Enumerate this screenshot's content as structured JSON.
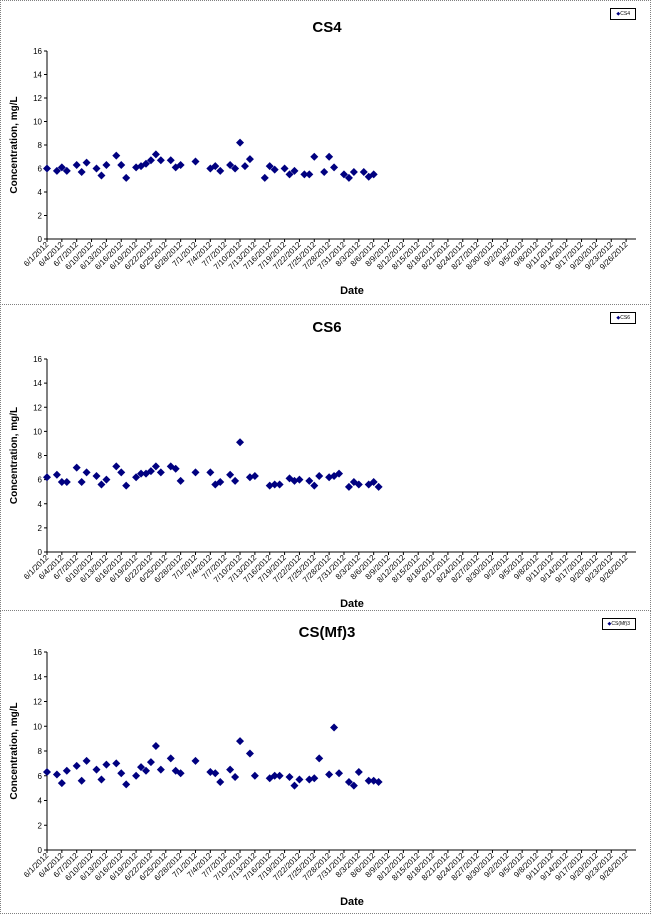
{
  "chart_data": [
    {
      "type": "scatter",
      "title": "CS4",
      "xlabel": "Date",
      "ylabel": "Concentration, mg/L",
      "ylim": [
        0,
        16
      ],
      "yticks": [
        0,
        2,
        4,
        6,
        8,
        10,
        12,
        14,
        16
      ],
      "xlim": [
        "2012-06-01",
        "2012-09-28"
      ],
      "xticks": [
        "6/1/2012",
        "6/4/2012",
        "6/7/2012",
        "6/10/2012",
        "6/13/2012",
        "6/16/2012",
        "6/19/2012",
        "6/22/2012",
        "6/25/2012",
        "6/28/2012",
        "7/1/2012",
        "7/4/2012",
        "7/7/2012",
        "7/10/2012",
        "7/13/2012",
        "7/16/2012",
        "7/19/2012",
        "7/22/2012",
        "7/25/2012",
        "7/28/2012",
        "7/31/2012",
        "8/3/2012",
        "8/6/2012",
        "8/9/2012",
        "8/12/2012",
        "8/15/2012",
        "8/18/2012",
        "8/21/2012",
        "8/24/2012",
        "8/27/2012",
        "8/30/2012",
        "9/2/2012",
        "9/5/2012",
        "9/8/2012",
        "9/11/2012",
        "9/14/2012",
        "9/17/2012",
        "9/20/2012",
        "9/23/2012",
        "9/26/2012"
      ],
      "grid": false,
      "legend_position": "top-right",
      "legend": [
        "CS4"
      ],
      "marker_color": "#000080",
      "points": [
        {
          "x": "2012-06-01",
          "y": 6.0
        },
        {
          "x": "2012-06-03",
          "y": 5.8
        },
        {
          "x": "2012-06-04",
          "y": 6.1
        },
        {
          "x": "2012-06-05",
          "y": 5.8
        },
        {
          "x": "2012-06-07",
          "y": 6.3
        },
        {
          "x": "2012-06-08",
          "y": 5.7
        },
        {
          "x": "2012-06-09",
          "y": 6.5
        },
        {
          "x": "2012-06-11",
          "y": 6.0
        },
        {
          "x": "2012-06-12",
          "y": 5.4
        },
        {
          "x": "2012-06-13",
          "y": 6.3
        },
        {
          "x": "2012-06-15",
          "y": 7.1
        },
        {
          "x": "2012-06-16",
          "y": 6.3
        },
        {
          "x": "2012-06-17",
          "y": 5.2
        },
        {
          "x": "2012-06-19",
          "y": 6.1
        },
        {
          "x": "2012-06-20",
          "y": 6.2
        },
        {
          "x": "2012-06-21",
          "y": 6.4
        },
        {
          "x": "2012-06-22",
          "y": 6.7
        },
        {
          "x": "2012-06-23",
          "y": 7.2
        },
        {
          "x": "2012-06-24",
          "y": 6.7
        },
        {
          "x": "2012-06-26",
          "y": 6.7
        },
        {
          "x": "2012-06-27",
          "y": 6.1
        },
        {
          "x": "2012-06-28",
          "y": 6.3
        },
        {
          "x": "2012-07-01",
          "y": 6.6
        },
        {
          "x": "2012-07-04",
          "y": 6.0
        },
        {
          "x": "2012-07-05",
          "y": 6.2
        },
        {
          "x": "2012-07-06",
          "y": 5.8
        },
        {
          "x": "2012-07-08",
          "y": 6.3
        },
        {
          "x": "2012-07-09",
          "y": 6.0
        },
        {
          "x": "2012-07-10",
          "y": 8.2
        },
        {
          "x": "2012-07-11",
          "y": 6.2
        },
        {
          "x": "2012-07-12",
          "y": 6.8
        },
        {
          "x": "2012-07-15",
          "y": 5.2
        },
        {
          "x": "2012-07-16",
          "y": 6.2
        },
        {
          "x": "2012-07-17",
          "y": 5.9
        },
        {
          "x": "2012-07-19",
          "y": 6.0
        },
        {
          "x": "2012-07-20",
          "y": 5.5
        },
        {
          "x": "2012-07-21",
          "y": 5.8
        },
        {
          "x": "2012-07-23",
          "y": 5.5
        },
        {
          "x": "2012-07-24",
          "y": 5.5
        },
        {
          "x": "2012-07-25",
          "y": 7.0
        },
        {
          "x": "2012-07-27",
          "y": 5.7
        },
        {
          "x": "2012-07-28",
          "y": 7.0
        },
        {
          "x": "2012-07-29",
          "y": 6.1
        },
        {
          "x": "2012-07-31",
          "y": 5.5
        },
        {
          "x": "2012-08-01",
          "y": 5.2
        },
        {
          "x": "2012-08-02",
          "y": 5.7
        },
        {
          "x": "2012-08-04",
          "y": 5.7
        },
        {
          "x": "2012-08-05",
          "y": 5.3
        },
        {
          "x": "2012-08-06",
          "y": 5.5
        }
      ]
    },
    {
      "type": "scatter",
      "title": "CS6",
      "xlabel": "Date",
      "ylabel": "Concentration, mg/L",
      "ylim": [
        0,
        16
      ],
      "yticks": [
        0,
        2,
        4,
        6,
        8,
        10,
        12,
        14,
        16
      ],
      "xlim": [
        "2012-06-01",
        "2012-09-28"
      ],
      "xticks": [
        "6/1/2012",
        "6/4/2012",
        "6/7/2012",
        "6/10/2012",
        "6/13/2012",
        "6/16/2012",
        "6/19/2012",
        "6/22/2012",
        "6/25/2012",
        "6/28/2012",
        "7/1/2012",
        "7/4/2012",
        "7/7/2012",
        "7/10/2012",
        "7/13/2012",
        "7/16/2012",
        "7/19/2012",
        "7/22/2012",
        "7/25/2012",
        "7/28/2012",
        "7/31/2012",
        "8/3/2012",
        "8/6/2012",
        "8/9/2012",
        "8/12/2012",
        "8/15/2012",
        "8/18/2012",
        "8/21/2012",
        "8/24/2012",
        "8/27/2012",
        "8/30/2012",
        "9/2/2012",
        "9/5/2012",
        "9/8/2012",
        "9/11/2012",
        "9/14/2012",
        "9/17/2012",
        "9/20/2012",
        "9/23/2012",
        "9/26/2012"
      ],
      "grid": false,
      "legend_position": "top-right",
      "legend": [
        "CS6"
      ],
      "marker_color": "#000080",
      "points": [
        {
          "x": "2012-06-01",
          "y": 6.2
        },
        {
          "x": "2012-06-03",
          "y": 6.4
        },
        {
          "x": "2012-06-04",
          "y": 5.8
        },
        {
          "x": "2012-06-05",
          "y": 5.8
        },
        {
          "x": "2012-06-07",
          "y": 7.0
        },
        {
          "x": "2012-06-08",
          "y": 5.8
        },
        {
          "x": "2012-06-09",
          "y": 6.6
        },
        {
          "x": "2012-06-11",
          "y": 6.3
        },
        {
          "x": "2012-06-12",
          "y": 5.6
        },
        {
          "x": "2012-06-13",
          "y": 6.0
        },
        {
          "x": "2012-06-15",
          "y": 7.1
        },
        {
          "x": "2012-06-16",
          "y": 6.6
        },
        {
          "x": "2012-06-17",
          "y": 5.5
        },
        {
          "x": "2012-06-19",
          "y": 6.2
        },
        {
          "x": "2012-06-20",
          "y": 6.5
        },
        {
          "x": "2012-06-21",
          "y": 6.5
        },
        {
          "x": "2012-06-22",
          "y": 6.7
        },
        {
          "x": "2012-06-23",
          "y": 7.1
        },
        {
          "x": "2012-06-24",
          "y": 6.6
        },
        {
          "x": "2012-06-26",
          "y": 7.1
        },
        {
          "x": "2012-06-27",
          "y": 6.9
        },
        {
          "x": "2012-06-28",
          "y": 5.9
        },
        {
          "x": "2012-07-01",
          "y": 6.6
        },
        {
          "x": "2012-07-04",
          "y": 6.6
        },
        {
          "x": "2012-07-05",
          "y": 5.6
        },
        {
          "x": "2012-07-06",
          "y": 5.8
        },
        {
          "x": "2012-07-08",
          "y": 6.4
        },
        {
          "x": "2012-07-09",
          "y": 5.9
        },
        {
          "x": "2012-07-10",
          "y": 9.1
        },
        {
          "x": "2012-07-12",
          "y": 6.2
        },
        {
          "x": "2012-07-13",
          "y": 6.3
        },
        {
          "x": "2012-07-16",
          "y": 5.5
        },
        {
          "x": "2012-07-17",
          "y": 5.6
        },
        {
          "x": "2012-07-18",
          "y": 5.6
        },
        {
          "x": "2012-07-20",
          "y": 6.1
        },
        {
          "x": "2012-07-21",
          "y": 5.9
        },
        {
          "x": "2012-07-22",
          "y": 6.0
        },
        {
          "x": "2012-07-24",
          "y": 5.9
        },
        {
          "x": "2012-07-25",
          "y": 5.5
        },
        {
          "x": "2012-07-26",
          "y": 6.3
        },
        {
          "x": "2012-07-28",
          "y": 6.2
        },
        {
          "x": "2012-07-29",
          "y": 6.3
        },
        {
          "x": "2012-07-30",
          "y": 6.5
        },
        {
          "x": "2012-08-01",
          "y": 5.4
        },
        {
          "x": "2012-08-02",
          "y": 5.8
        },
        {
          "x": "2012-08-03",
          "y": 5.6
        },
        {
          "x": "2012-08-05",
          "y": 5.6
        },
        {
          "x": "2012-08-06",
          "y": 5.8
        },
        {
          "x": "2012-08-07",
          "y": 5.4
        }
      ]
    },
    {
      "type": "scatter",
      "title": "CS(Mf)3",
      "xlabel": "Date",
      "ylabel": "Concentration, mg/L",
      "ylim": [
        0,
        16
      ],
      "yticks": [
        0,
        2,
        4,
        6,
        8,
        10,
        12,
        14,
        16
      ],
      "xlim": [
        "2012-06-01",
        "2012-09-28"
      ],
      "xticks": [
        "6/1/2012",
        "6/4/2012",
        "6/7/2012",
        "6/10/2012",
        "6/13/2012",
        "6/16/2012",
        "6/19/2012",
        "6/22/2012",
        "6/25/2012",
        "6/28/2012",
        "7/1/2012",
        "7/4/2012",
        "7/7/2012",
        "7/10/2012",
        "7/13/2012",
        "7/16/2012",
        "7/19/2012",
        "7/22/2012",
        "7/25/2012",
        "7/28/2012",
        "7/31/2012",
        "8/3/2012",
        "8/6/2012",
        "8/9/2012",
        "8/12/2012",
        "8/15/2012",
        "8/18/2012",
        "8/21/2012",
        "8/24/2012",
        "8/27/2012",
        "8/30/2012",
        "9/2/2012",
        "9/5/2012",
        "9/8/2012",
        "9/11/2012",
        "9/14/2012",
        "9/17/2012",
        "9/20/2012",
        "9/23/2012",
        "9/26/2012"
      ],
      "grid": false,
      "legend_position": "top-right",
      "legend": [
        "CS(Mf)3"
      ],
      "marker_color": "#000080",
      "points": [
        {
          "x": "2012-06-01",
          "y": 6.3
        },
        {
          "x": "2012-06-03",
          "y": 6.1
        },
        {
          "x": "2012-06-04",
          "y": 5.4
        },
        {
          "x": "2012-06-05",
          "y": 6.4
        },
        {
          "x": "2012-06-07",
          "y": 6.8
        },
        {
          "x": "2012-06-08",
          "y": 5.6
        },
        {
          "x": "2012-06-09",
          "y": 7.2
        },
        {
          "x": "2012-06-11",
          "y": 6.5
        },
        {
          "x": "2012-06-12",
          "y": 5.7
        },
        {
          "x": "2012-06-13",
          "y": 6.9
        },
        {
          "x": "2012-06-15",
          "y": 7.0
        },
        {
          "x": "2012-06-16",
          "y": 6.2
        },
        {
          "x": "2012-06-17",
          "y": 5.3
        },
        {
          "x": "2012-06-19",
          "y": 6.0
        },
        {
          "x": "2012-06-20",
          "y": 6.7
        },
        {
          "x": "2012-06-21",
          "y": 6.4
        },
        {
          "x": "2012-06-22",
          "y": 7.1
        },
        {
          "x": "2012-06-23",
          "y": 8.4
        },
        {
          "x": "2012-06-24",
          "y": 6.5
        },
        {
          "x": "2012-06-26",
          "y": 7.4
        },
        {
          "x": "2012-06-27",
          "y": 6.4
        },
        {
          "x": "2012-06-28",
          "y": 6.2
        },
        {
          "x": "2012-07-01",
          "y": 7.2
        },
        {
          "x": "2012-07-04",
          "y": 6.3
        },
        {
          "x": "2012-07-05",
          "y": 6.2
        },
        {
          "x": "2012-07-06",
          "y": 5.5
        },
        {
          "x": "2012-07-08",
          "y": 6.5
        },
        {
          "x": "2012-07-09",
          "y": 5.9
        },
        {
          "x": "2012-07-10",
          "y": 8.8
        },
        {
          "x": "2012-07-12",
          "y": 7.8
        },
        {
          "x": "2012-07-13",
          "y": 6.0
        },
        {
          "x": "2012-07-16",
          "y": 5.8
        },
        {
          "x": "2012-07-17",
          "y": 6.0
        },
        {
          "x": "2012-07-18",
          "y": 6.0
        },
        {
          "x": "2012-07-20",
          "y": 5.9
        },
        {
          "x": "2012-07-21",
          "y": 5.2
        },
        {
          "x": "2012-07-22",
          "y": 5.7
        },
        {
          "x": "2012-07-24",
          "y": 5.7
        },
        {
          "x": "2012-07-25",
          "y": 5.8
        },
        {
          "x": "2012-07-26",
          "y": 7.4
        },
        {
          "x": "2012-07-28",
          "y": 6.1
        },
        {
          "x": "2012-07-29",
          "y": 9.9
        },
        {
          "x": "2012-07-30",
          "y": 6.2
        },
        {
          "x": "2012-08-01",
          "y": 5.5
        },
        {
          "x": "2012-08-02",
          "y": 5.2
        },
        {
          "x": "2012-08-03",
          "y": 6.3
        },
        {
          "x": "2012-08-05",
          "y": 5.6
        },
        {
          "x": "2012-08-06",
          "y": 5.6
        },
        {
          "x": "2012-08-07",
          "y": 5.5
        }
      ]
    }
  ]
}
